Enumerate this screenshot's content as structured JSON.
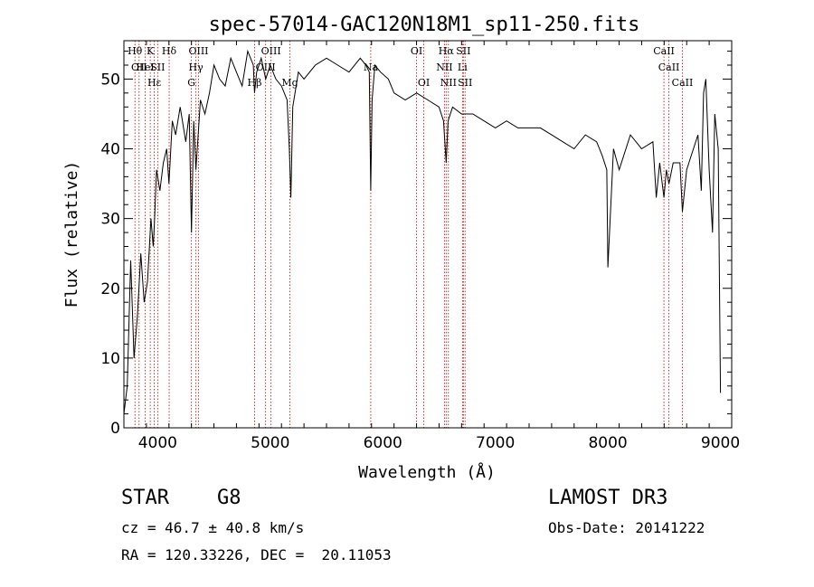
{
  "title": "spec-57014-GAC120N18M1_sp11-250.fits",
  "chart_data": {
    "type": "line",
    "title": "spec-57014-GAC120N18M1_sp11-250.fits",
    "xlabel": "Wavelength (Å)",
    "ylabel": "Flux (relative)",
    "xlim": [
      3700,
      9100
    ],
    "ylim": [
      0,
      55.5
    ],
    "xticks": [
      4000,
      5000,
      6000,
      7000,
      8000,
      9000
    ],
    "yticks": [
      0,
      10,
      20,
      30,
      40,
      50
    ],
    "series": [
      {
        "name": "flux",
        "x": [
          3700,
          3730,
          3760,
          3790,
          3820,
          3850,
          3880,
          3910,
          3940,
          3960,
          3970,
          3990,
          4020,
          4050,
          4080,
          4100,
          4130,
          4160,
          4200,
          4250,
          4280,
          4300,
          4320,
          4340,
          4380,
          4420,
          4460,
          4500,
          4550,
          4600,
          4650,
          4700,
          4750,
          4800,
          4850,
          4860,
          4880,
          4920,
          4960,
          5000,
          5050,
          5100,
          5150,
          5170,
          5183,
          5200,
          5250,
          5300,
          5400,
          5500,
          5600,
          5700,
          5800,
          5850,
          5880,
          5893,
          5905,
          5930,
          5980,
          6050,
          6100,
          6200,
          6300,
          6400,
          6500,
          6540,
          6563,
          6580,
          6620,
          6700,
          6800,
          6900,
          7000,
          7100,
          7200,
          7300,
          7400,
          7500,
          7600,
          7700,
          7800,
          7900,
          7950,
          7990,
          8000,
          8050,
          8100,
          8200,
          8300,
          8400,
          8430,
          8460,
          8498,
          8520,
          8542,
          8580,
          8640,
          8662,
          8700,
          8760,
          8800,
          8830,
          8850,
          8870,
          8900,
          8930,
          8950,
          8980,
          9000
        ],
        "y": [
          2,
          6,
          24,
          10,
          16,
          25,
          18,
          21,
          30,
          26,
          29,
          37,
          34,
          38,
          40,
          35,
          44,
          42,
          46,
          41,
          45,
          28,
          44,
          37,
          47,
          45,
          48,
          52,
          50,
          49,
          53,
          51,
          49,
          54,
          52,
          48,
          51,
          53,
          50,
          52,
          50,
          49,
          47,
          40,
          33,
          46,
          51,
          50,
          52,
          53,
          52,
          51,
          53,
          52,
          51,
          34,
          47,
          52,
          51,
          50,
          48,
          47,
          48,
          47,
          46,
          44,
          38,
          44,
          46,
          45,
          45,
          44,
          43,
          44,
          43,
          43,
          43,
          42,
          41,
          40,
          42,
          41,
          39,
          37,
          23,
          40,
          37,
          42,
          40,
          41,
          33,
          38,
          33,
          37,
          35,
          38,
          38,
          31,
          37,
          40,
          42,
          34,
          48,
          50,
          37,
          28,
          45,
          40,
          5
        ]
      }
    ],
    "lines": [
      {
        "wave": 3798,
        "label": "Hθ",
        "row": 0
      },
      {
        "wave": 3835,
        "label": "OII",
        "row": 1
      },
      {
        "wave": 3889,
        "label": "HeI",
        "row": 1
      },
      {
        "wave": 3934,
        "label": "K",
        "row": 0
      },
      {
        "wave": 3970,
        "label": "Hε",
        "row": 2
      },
      {
        "wave": 4000,
        "label": "SII",
        "row": 1
      },
      {
        "wave": 4102,
        "label": "Hδ",
        "row": 0
      },
      {
        "wave": 4300,
        "label": "G",
        "row": 2
      },
      {
        "wave": 4340,
        "label": "Hγ",
        "row": 1
      },
      {
        "wave": 4363,
        "label": "OIII",
        "row": 0
      },
      {
        "wave": 4861,
        "label": "Hβ",
        "row": 2
      },
      {
        "wave": 4959,
        "label": "OIII",
        "row": 1
      },
      {
        "wave": 5007,
        "label": "OIII",
        "row": 0
      },
      {
        "wave": 5175,
        "label": "Mg",
        "row": 2
      },
      {
        "wave": 5893,
        "label": "Na",
        "row": 1
      },
      {
        "wave": 6300,
        "label": "OI",
        "row": 0
      },
      {
        "wave": 6364,
        "label": "OI",
        "row": 2
      },
      {
        "wave": 6548,
        "label": "NII",
        "row": 1
      },
      {
        "wave": 6563,
        "label": "Hα",
        "row": 0
      },
      {
        "wave": 6583,
        "label": "NII",
        "row": 2
      },
      {
        "wave": 6708,
        "label": "Li",
        "row": 1
      },
      {
        "wave": 6716,
        "label": "SII",
        "row": 0
      },
      {
        "wave": 6731,
        "label": "SII",
        "row": 2
      },
      {
        "wave": 8498,
        "label": "CaII",
        "row": 0
      },
      {
        "wave": 8542,
        "label": "CaII",
        "row": 1
      },
      {
        "wave": 8662,
        "label": "CaII",
        "row": 2
      }
    ]
  },
  "info": {
    "object_class": "STAR",
    "subclass": "G8",
    "survey": "LAMOST DR3",
    "cz": "cz = 46.7 ± 40.8 km/s",
    "obs_date": "Obs-Date: 20141222",
    "coords": "RA = 120.33226, DEC =  20.11053"
  },
  "colors": {
    "line_marker": "#cc0000",
    "spectrum": "#000000"
  }
}
